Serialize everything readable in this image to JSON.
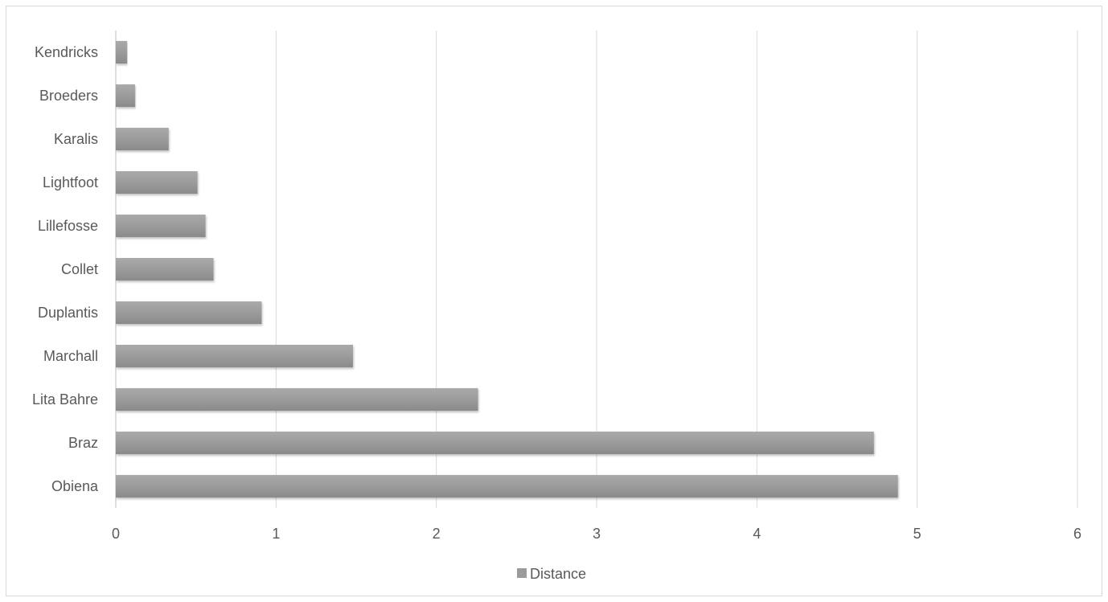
{
  "chart_data": {
    "type": "bar",
    "orientation": "horizontal",
    "categories": [
      "Obiena",
      "Braz",
      "Lita Bahre",
      "Marchall",
      "Duplantis",
      "Collet",
      "Lillefosse",
      "Lightfoot",
      "Karalis",
      "Broeders",
      "Kendricks"
    ],
    "series": [
      {
        "name": "Distance",
        "values": [
          4.88,
          4.73,
          2.26,
          1.48,
          0.91,
          0.61,
          0.56,
          0.51,
          0.33,
          0.12,
          0.07
        ]
      }
    ],
    "xlim": [
      0,
      6
    ],
    "x_ticks": [
      "0",
      "1",
      "2",
      "3",
      "4",
      "5",
      "6"
    ],
    "grid": true,
    "legend_position": "bottom",
    "bar_color": "#9b9b9b"
  }
}
